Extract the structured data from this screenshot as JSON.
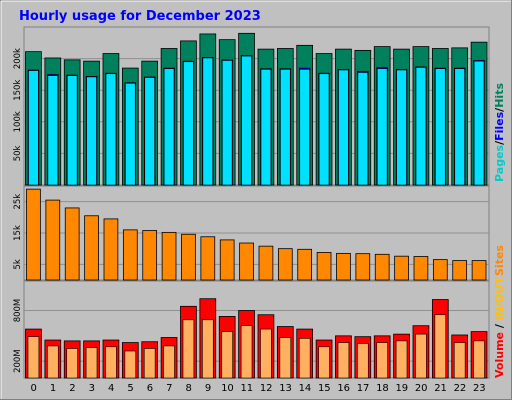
{
  "title": "Hourly usage for December 2023",
  "colors": {
    "title": "#0000ff",
    "pages": "#00cccc",
    "files": "#0000ff",
    "hits": "#00805c",
    "sites": "#ff8800",
    "in_out": "#ffc000",
    "volume": "#ff0000",
    "plot_bg": "#c0c0c0",
    "frame_bg": "#c0c0c0"
  },
  "legend": {
    "pages": "Pages",
    "files": "Files",
    "hits": "Hits",
    "sites": "Sites",
    "in_out": "IN/OUT",
    "volume": "Volume",
    "sep": "/",
    "sep2": " / "
  },
  "chart_data": [
    {
      "type": "bar",
      "panel": "hits-files-pages",
      "categories": [
        "0",
        "1",
        "2",
        "3",
        "4",
        "5",
        "6",
        "7",
        "8",
        "9",
        "10",
        "11",
        "12",
        "13",
        "14",
        "15",
        "16",
        "17",
        "18",
        "19",
        "20",
        "21",
        "22",
        "23"
      ],
      "ylim": [
        0,
        250000
      ],
      "yticks": [
        50000,
        100000,
        150000,
        200000
      ],
      "ytick_labels": [
        "50k",
        "100k",
        "150k",
        "200k"
      ],
      "series": [
        {
          "name": "Hits",
          "values": [
            211000,
            201000,
            198000,
            196000,
            208000,
            185000,
            196000,
            216000,
            228000,
            239000,
            230000,
            240000,
            215000,
            216000,
            221000,
            208000,
            215000,
            213000,
            219000,
            215000,
            219000,
            216000,
            217000,
            226000
          ]
        },
        {
          "name": "Files",
          "values": [
            182000,
            175000,
            174000,
            172000,
            177000,
            162000,
            171000,
            185000,
            196000,
            202000,
            198000,
            205000,
            184000,
            184000,
            185000,
            177000,
            183000,
            180000,
            186000,
            183000,
            187000,
            185000,
            185000,
            197000
          ]
        },
        {
          "name": "Pages",
          "values": [
            181000,
            173000,
            173000,
            171000,
            176000,
            161000,
            170000,
            184000,
            195000,
            201000,
            197000,
            204000,
            183000,
            183000,
            183000,
            176000,
            182000,
            178000,
            184000,
            182000,
            186000,
            184000,
            184000,
            196000
          ]
        }
      ]
    },
    {
      "type": "bar",
      "panel": "sites",
      "categories": [
        "0",
        "1",
        "2",
        "3",
        "4",
        "5",
        "6",
        "7",
        "8",
        "9",
        "10",
        "11",
        "12",
        "13",
        "14",
        "15",
        "16",
        "17",
        "18",
        "19",
        "20",
        "21",
        "22",
        "23"
      ],
      "ylim": [
        0,
        30000
      ],
      "yticks": [
        5000,
        15000,
        25000
      ],
      "ytick_labels": [
        "5k",
        "15k",
        "25k"
      ],
      "series": [
        {
          "name": "Sites",
          "values": [
            29000,
            25500,
            23000,
            20500,
            19500,
            16000,
            15800,
            15200,
            14600,
            13800,
            12800,
            11800,
            10800,
            10000,
            9800,
            8800,
            8500,
            8400,
            8200,
            7600,
            7500,
            6500,
            6200,
            6200
          ]
        }
      ]
    },
    {
      "type": "bar",
      "panel": "volume",
      "categories": [
        "0",
        "1",
        "2",
        "3",
        "4",
        "5",
        "6",
        "7",
        "8",
        "9",
        "10",
        "11",
        "12",
        "13",
        "14",
        "15",
        "16",
        "17",
        "18",
        "19",
        "20",
        "21",
        "22",
        "23"
      ],
      "ylim": [
        0,
        1150
      ],
      "yticks": [
        200,
        800
      ],
      "ytick_labels": [
        "200M",
        "800M"
      ],
      "series": [
        {
          "name": "Volume",
          "values": [
            580,
            450,
            440,
            440,
            450,
            420,
            430,
            480,
            850,
            940,
            730,
            800,
            750,
            610,
            580,
            450,
            500,
            490,
            500,
            520,
            620,
            930,
            510,
            550
          ]
        },
        {
          "name": "IN/OUT",
          "values": [
            490,
            380,
            350,
            360,
            370,
            320,
            350,
            380,
            690,
            690,
            550,
            620,
            580,
            480,
            470,
            370,
            420,
            410,
            420,
            440,
            520,
            750,
            420,
            440
          ]
        }
      ]
    }
  ]
}
